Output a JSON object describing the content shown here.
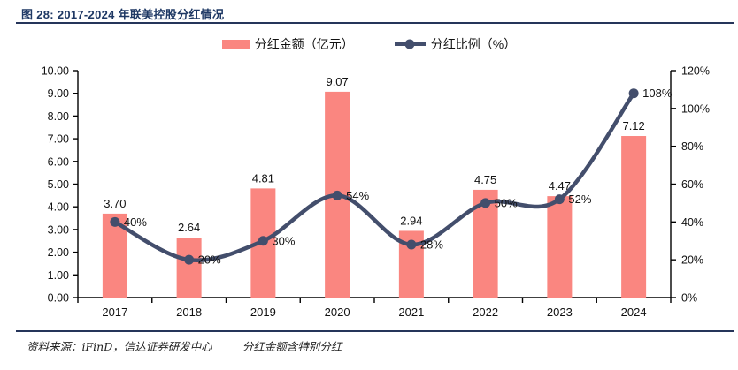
{
  "title": "图 28:  2017-2024 年联美控股分红情况",
  "legend": [
    {
      "label": "分红金额（亿元）",
      "marker": "bar-swatch"
    },
    {
      "label": "分红比例（%）",
      "marker": "line-dot-swatch"
    }
  ],
  "footer": {
    "source": "资料来源：iFinD，信达证券研发中心",
    "note": "分红金额含特别分红"
  },
  "colors": {
    "bar": "#FA8680",
    "line": "#434E6C",
    "title": "#1E3864",
    "rule": "#25355A",
    "axis": "#000000",
    "text": "#111111"
  },
  "chart_data": {
    "type": "bar+line",
    "title": "2017-2024 年联美控股分红情况",
    "categories": [
      "2017",
      "2018",
      "2019",
      "2020",
      "2021",
      "2022",
      "2023",
      "2024"
    ],
    "series": [
      {
        "name": "分红金额（亿元）",
        "type": "bar",
        "axis": "left",
        "values": [
          3.7,
          2.64,
          4.81,
          9.07,
          2.94,
          4.75,
          4.47,
          7.12
        ],
        "labels": [
          "3.70",
          "2.64",
          "4.81",
          "9.07",
          "2.94",
          "4.75",
          "4.47",
          "7.12"
        ]
      },
      {
        "name": "分红比例（%）",
        "type": "line",
        "axis": "right",
        "smooth": true,
        "values": [
          40,
          20,
          30,
          54,
          28,
          50,
          52,
          108
        ],
        "labels": [
          "40%",
          "20%",
          "30%",
          "54%",
          "28%",
          "50%",
          "52%",
          "108%"
        ]
      }
    ],
    "left_axis": {
      "min": 0,
      "max": 10,
      "step": 1,
      "tick_labels": [
        "0.00",
        "1.00",
        "2.00",
        "3.00",
        "4.00",
        "5.00",
        "6.00",
        "7.00",
        "8.00",
        "9.00",
        "10.00"
      ]
    },
    "right_axis": {
      "min": 0,
      "max": 120,
      "step": 20,
      "tick_labels": [
        "0%",
        "20%",
        "40%",
        "60%",
        "80%",
        "100%",
        "120%"
      ]
    },
    "grid": false,
    "legend_position": "top-center"
  }
}
